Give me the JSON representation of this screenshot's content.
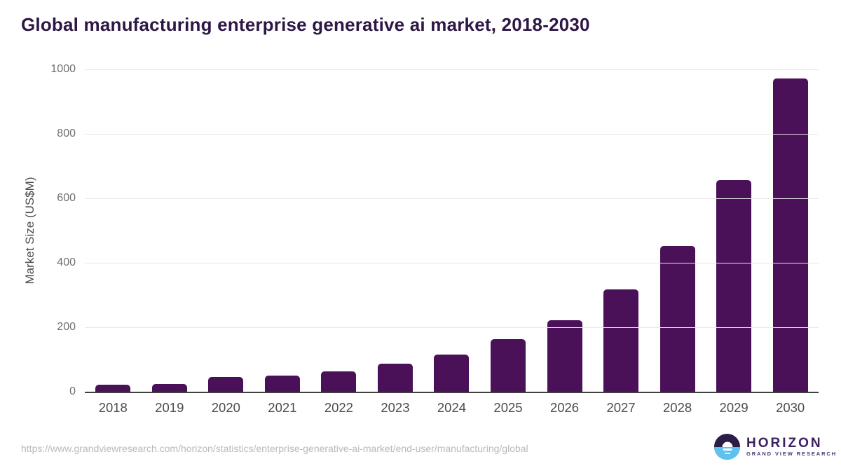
{
  "header": {
    "title": "Global manufacturing enterprise generative ai market, 2018-2030"
  },
  "chart_data": {
    "type": "bar",
    "title": "Global manufacturing enterprise generative ai market, 2018-2030",
    "categories": [
      "2018",
      "2019",
      "2020",
      "2021",
      "2022",
      "2023",
      "2024",
      "2025",
      "2026",
      "2027",
      "2028",
      "2029",
      "2030"
    ],
    "values": [
      22,
      24,
      46,
      50,
      64,
      87,
      116,
      162,
      222,
      317,
      452,
      656,
      971
    ],
    "xlabel": "",
    "ylabel": "Market Size (US$M)",
    "ylim": [
      0,
      1000
    ],
    "yticks": [
      0,
      200,
      400,
      600,
      800,
      1000
    ],
    "grid": "horizontal-only",
    "legend": "none",
    "bar_color": "#4a1158"
  },
  "footer": {
    "source_url": "https://www.grandviewresearch.com/horizon/statistics/enterprise-generative-ai-market/end-user/manufacturing/global",
    "logo": {
      "name": "HORIZON",
      "subtitle": "GRAND VIEW RESEARCH"
    }
  },
  "colors": {
    "bar": "#4a1158",
    "title_text": "#2e1745",
    "gridline": "#e8e8e8",
    "axis_line": "#3f3f3f",
    "ytick_text": "#6f6f6f",
    "xtick_text": "#4d4d4d",
    "url_text": "#b9b9b9",
    "logo_dark": "#2a1e46",
    "logo_blue": "#5ec1ee",
    "logo_text": "#3b2160"
  }
}
